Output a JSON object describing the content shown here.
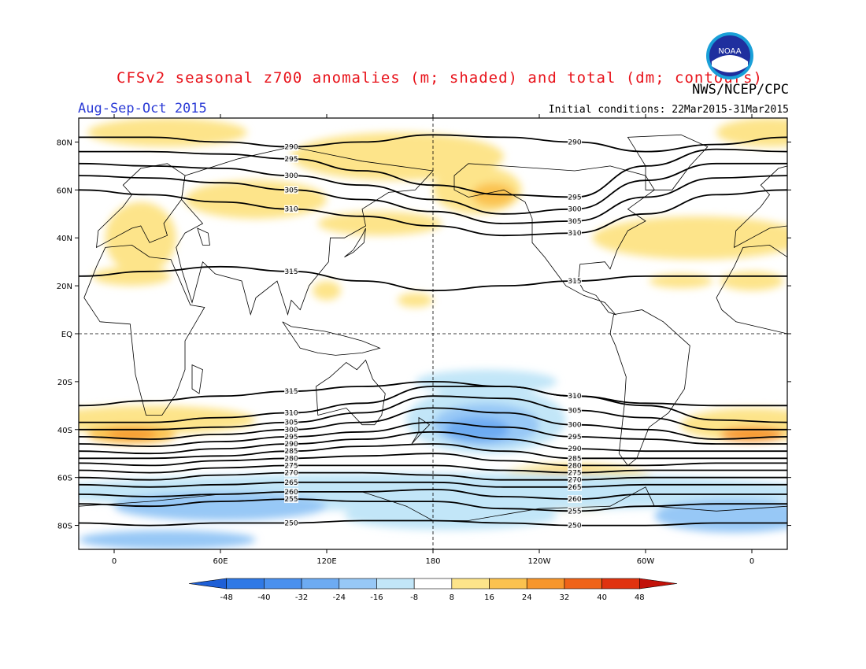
{
  "title": "CFSv2 seasonal z700 anomalies (m; shaded) and total (dm; contours)",
  "agency": "NWS/NCEP/CPC",
  "season": "Aug-Sep-Oct 2015",
  "initial_conditions": "Initial conditions: 22Mar2015-31Mar2015",
  "logo_text": "NOAA",
  "map": {
    "projection": "cylindrical equidistant, 0-360E centered on 180",
    "lon_range": [
      -20,
      380
    ],
    "lat_range": [
      -90,
      90
    ],
    "lat_ticks": [
      {
        "value": 80,
        "label": "80N"
      },
      {
        "value": 60,
        "label": "60N"
      },
      {
        "value": 40,
        "label": "40N"
      },
      {
        "value": 20,
        "label": "20N"
      },
      {
        "value": 0,
        "label": "EQ"
      },
      {
        "value": -20,
        "label": "20S"
      },
      {
        "value": -40,
        "label": "40S"
      },
      {
        "value": -60,
        "label": "60S"
      },
      {
        "value": -80,
        "label": "80S"
      }
    ],
    "lon_ticks": [
      {
        "value": 0,
        "label": "0"
      },
      {
        "value": 60,
        "label": "60E"
      },
      {
        "value": 120,
        "label": "120E"
      },
      {
        "value": 180,
        "label": "180"
      },
      {
        "value": 240,
        "label": "120W"
      },
      {
        "value": 300,
        "label": "60W"
      },
      {
        "value": 360,
        "label": "0"
      }
    ],
    "reference_lines": {
      "equator": 0,
      "dateline": 180
    }
  },
  "colorbar": {
    "labels": [
      "-48",
      "-40",
      "-32",
      "-24",
      "-16",
      "-8",
      "8",
      "16",
      "24",
      "32",
      "40",
      "48"
    ],
    "colors": [
      "#1e5fd6",
      "#2f79e6",
      "#4a90ee",
      "#6dabf2",
      "#97c8f6",
      "#c2e6f8",
      "#ffffff",
      "#fde48a",
      "#fbc24f",
      "#f7962b",
      "#ef6318",
      "#e0330f",
      "#c2120a"
    ]
  },
  "contours": {
    "units": "dm",
    "labeled_values": [
      "250",
      "255",
      "260",
      "265",
      "270",
      "275",
      "280",
      "285",
      "290",
      "295",
      "300",
      "305",
      "310",
      "315"
    ]
  }
}
